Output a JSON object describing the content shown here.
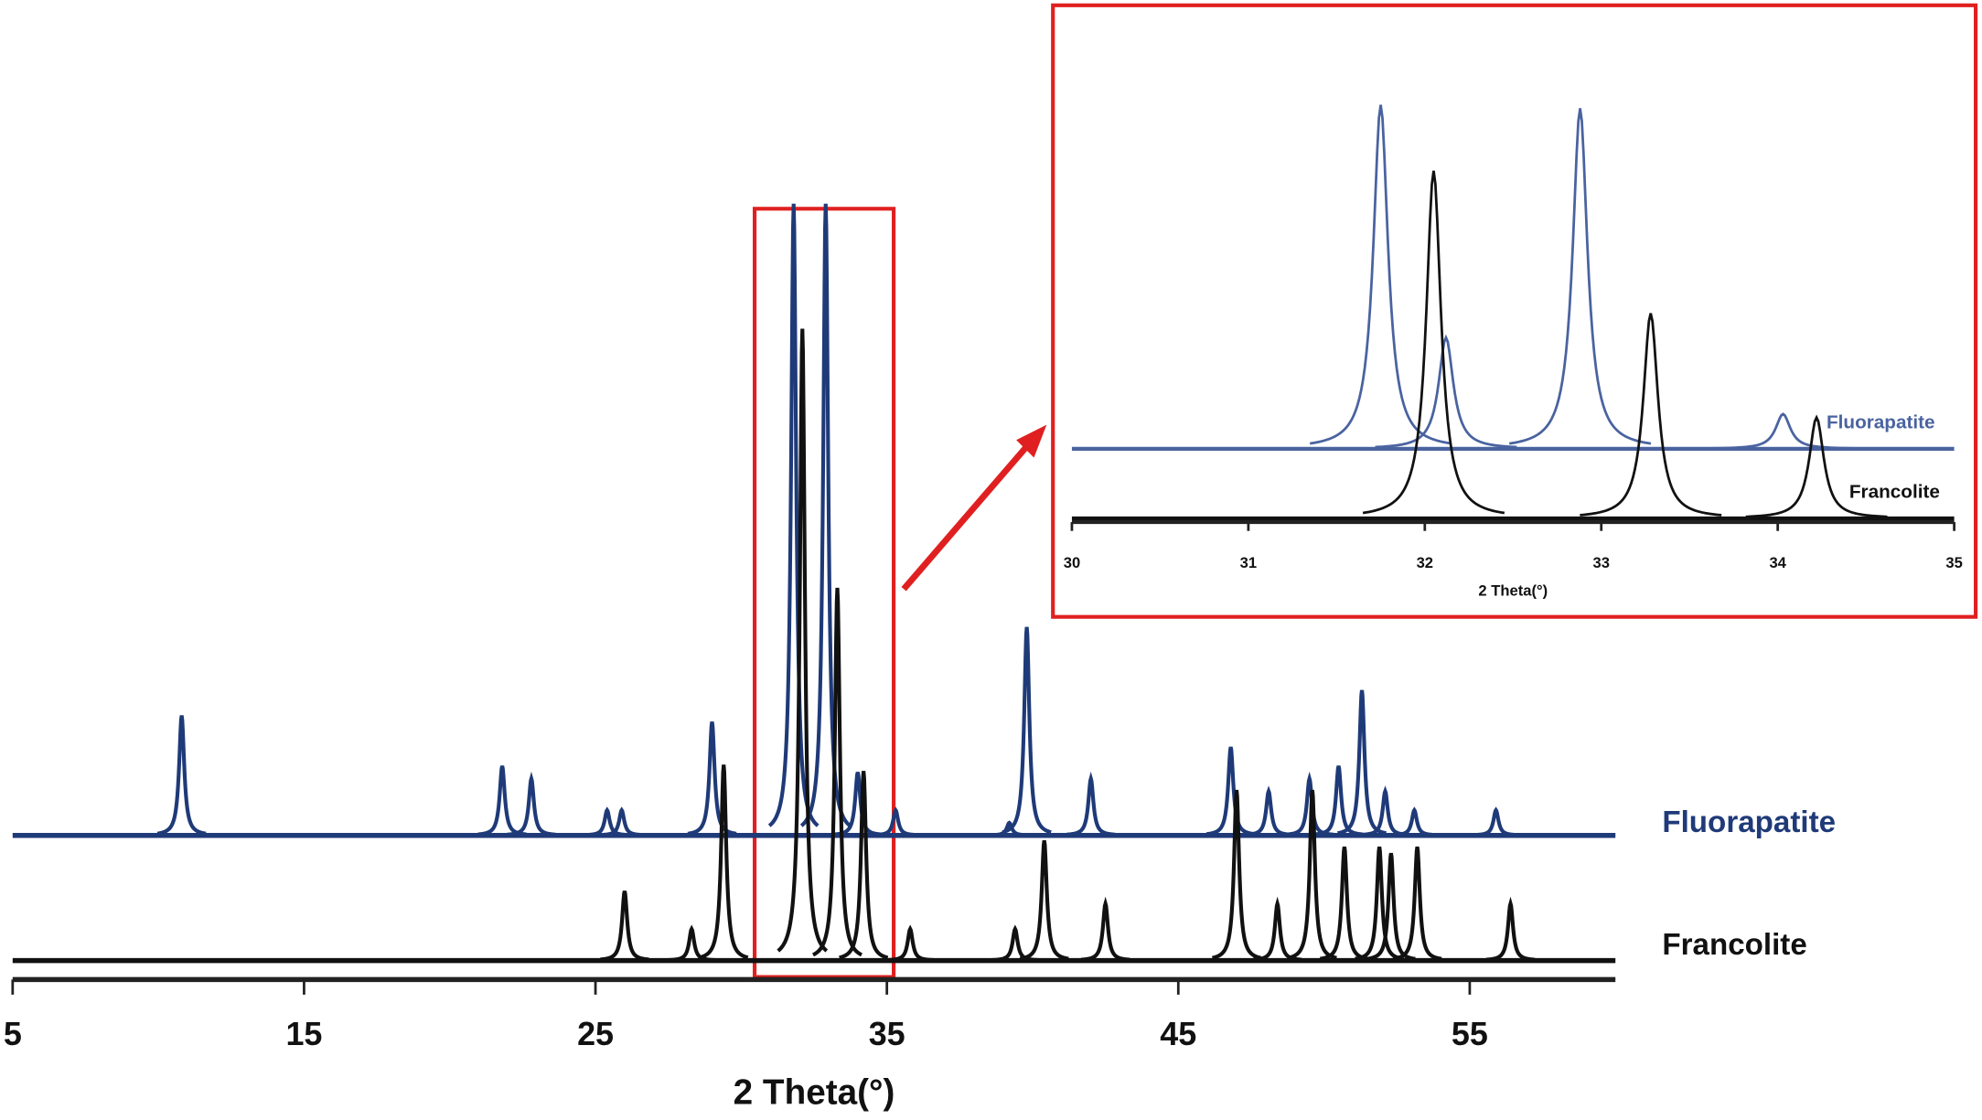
{
  "chart_data": [
    {
      "type": "line",
      "xlabel": "2 Theta(°)",
      "xlim": [
        5,
        60
      ],
      "xticks": [
        5,
        15,
        25,
        35,
        45,
        55
      ],
      "ylim": [
        0,
        100
      ],
      "series": [
        {
          "name": "Fluorapatite",
          "color": "#1f3a78",
          "x": [
            10.8,
            21.8,
            22.8,
            25.4,
            25.9,
            29.0,
            31.8,
            32.9,
            34.0,
            35.3,
            39.2,
            39.8,
            42.0,
            46.8,
            48.1,
            49.5,
            50.5,
            51.3,
            52.1,
            53.1,
            55.9
          ],
          "values": [
            19,
            11,
            9,
            4,
            4,
            18,
            100,
            100,
            10,
            4,
            2,
            33,
            9,
            14,
            7,
            9,
            11,
            23,
            7,
            4,
            4
          ]
        },
        {
          "name": "Francolite",
          "color": "#111111",
          "x": [
            26.0,
            28.3,
            29.4,
            32.1,
            33.3,
            34.2,
            35.8,
            39.4,
            40.4,
            42.5,
            47.0,
            48.4,
            49.6,
            50.7,
            51.9,
            52.3,
            53.2,
            56.4
          ],
          "values": [
            11,
            5,
            31,
            100,
            59,
            30,
            5,
            5,
            19,
            9,
            27,
            9,
            27,
            18,
            18,
            17,
            18,
            9
          ]
        }
      ]
    },
    {
      "type": "line",
      "xlabel": "2 Theta(°)",
      "xlim": [
        30,
        35
      ],
      "xticks": [
        30,
        31,
        32,
        33,
        34,
        35
      ],
      "ylim": [
        0,
        100
      ],
      "series": [
        {
          "name": "Fluorapatite",
          "color": "#4a63a0",
          "x": [
            31.75,
            32.12,
            32.88,
            34.03
          ],
          "values": [
            99,
            32,
            98,
            10
          ]
        },
        {
          "name": "Francolite",
          "color": "#111111",
          "x": [
            32.05,
            33.28,
            34.22
          ],
          "values": [
            100,
            59,
            29
          ]
        }
      ]
    }
  ]
}
